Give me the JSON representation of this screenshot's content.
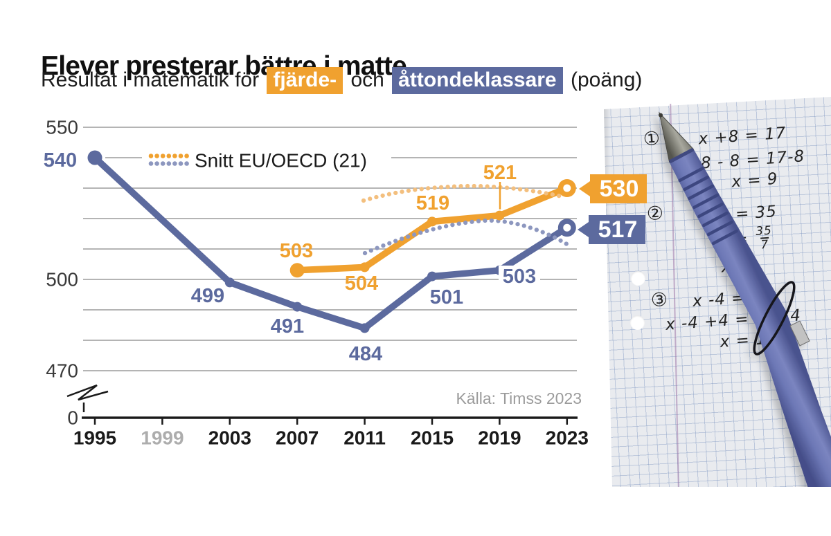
{
  "header": {
    "title": "Elever presterar bättre i matte",
    "subtitle_parts": [
      {
        "text": "Resultat i matematik för ",
        "style": "plain"
      },
      {
        "text": "fjärde-",
        "style": "orange"
      },
      {
        "text": " och ",
        "style": "plain"
      },
      {
        "text": "åttondeklassare",
        "style": "blue"
      },
      {
        "text": " (poäng)",
        "style": "plain"
      }
    ]
  },
  "legend": {
    "label": "Snitt EU/OECD (21)"
  },
  "source": "Källa: Timss 2023",
  "chart_data": {
    "type": "line",
    "title": "Elever presterar bättre i matte",
    "subtitle": "Resultat i matematik för fjärde- och åttondeklassare (poäng)",
    "x": [
      1995,
      1999,
      2003,
      2007,
      2011,
      2015,
      2019,
      2023
    ],
    "grayed_x": [
      1999
    ],
    "yticks": [
      550,
      500,
      470,
      0
    ],
    "ylim": [
      470,
      550
    ],
    "axis_break": true,
    "grid": "horizontal gridlines every 10 points",
    "legend_position": "top-left inside plot",
    "series": [
      {
        "name": "Fjärdeklassare",
        "color": "#F0A12F",
        "style": "solid",
        "points": {
          "2007": 503,
          "2011": 504,
          "2015": 519,
          "2019": 521,
          "2023": 530
        },
        "end_label": 530
      },
      {
        "name": "Åttondeklassare",
        "color": "#5C6A9E",
        "style": "solid",
        "points": {
          "1995": 540,
          "2003": 499,
          "2007": 491,
          "2011": 484,
          "2015": 501,
          "2019": 503,
          "2023": 517
        },
        "end_label": 517
      },
      {
        "name": "Snitt EU/OECD (21) — fjärdeklassare (avläst)",
        "color": "#F3BF7E",
        "style": "dotted",
        "points": {
          "2011": 526,
          "2015": 530,
          "2019": 530,
          "2023": 528
        }
      },
      {
        "name": "Snitt EU/OECD (21) — åttondeklassare (avläst)",
        "color": "#8D97BF",
        "style": "dotted",
        "points": {
          "2011": 509,
          "2015": 518,
          "2019": 520,
          "2023": 512
        }
      }
    ],
    "source": "Källa: Timss 2023"
  },
  "paper": {
    "equations": [
      {
        "num": "①",
        "lines": [
          {
            "t": "x +8 = 17"
          },
          {
            "t": "+8 - 8 = 17-8"
          },
          {
            "t": "x = 9"
          }
        ]
      },
      {
        "num": "②",
        "lines": [
          {
            "t": "= 35"
          },
          {
            "t": "7x/7 = 35/7",
            "frac": true
          },
          {
            "t": "x ="
          }
        ]
      },
      {
        "num": "③",
        "lines": [
          {
            "t": "x -4 = 12"
          },
          {
            "t": "x -4 +4 = 12+4"
          },
          {
            "t": "x = 16"
          }
        ]
      }
    ]
  },
  "colors": {
    "orange": "#F0A12F",
    "blue": "#5C6A9E",
    "orange_dotted": "#F3BF7E",
    "blue_dotted": "#8D97BF",
    "grid": "#9B9B9B",
    "axis": "#1A1A1A",
    "year_muted": "#ADADAD",
    "source_text": "#9B9B9B"
  }
}
